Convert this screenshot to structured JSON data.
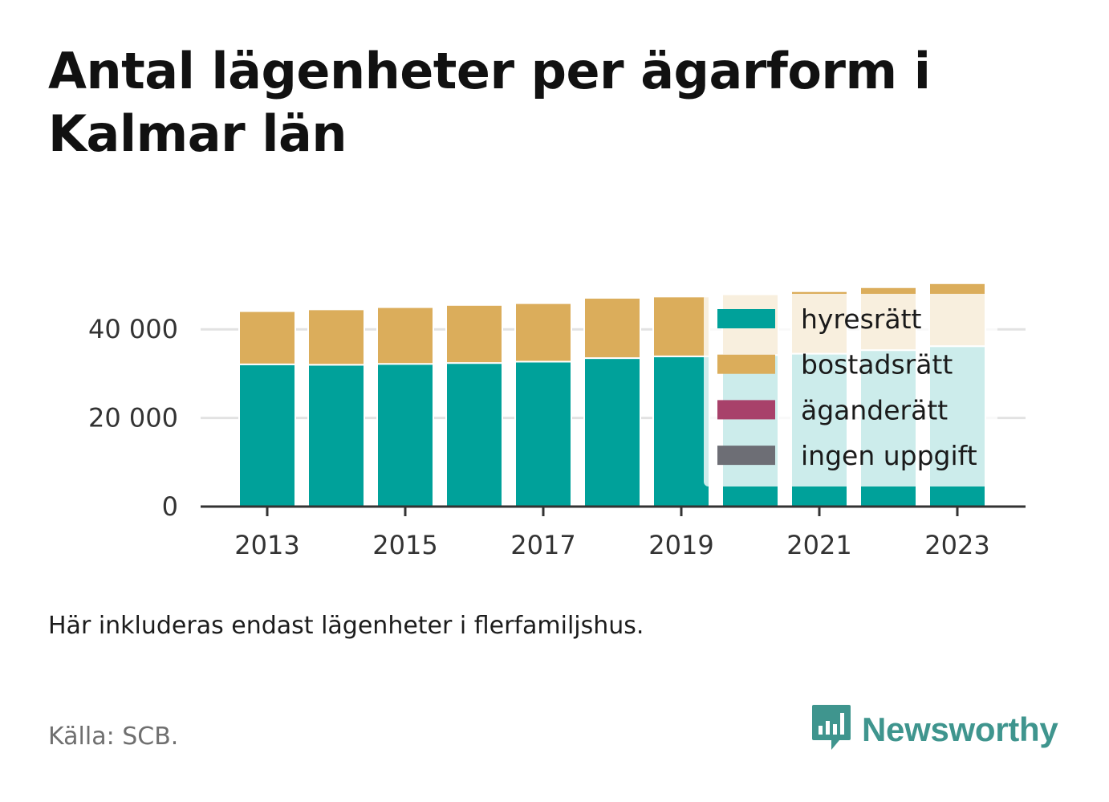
{
  "title": "Antal lägenheter per ägarform i Kalmar län",
  "note": "Här inkluderas endast lägenheter i flerfamiljshus.",
  "source": "Källa: SCB.",
  "brand": {
    "name": "Newsworthy",
    "icon": "newsworthy-bar-chart-logo-icon",
    "color": "#3f958e"
  },
  "chart_data": {
    "type": "bar",
    "stacked": true,
    "categories": [
      "2013",
      "2014",
      "2015",
      "2016",
      "2017",
      "2018",
      "2019",
      "2020",
      "2021",
      "2022",
      "2023"
    ],
    "x_tick_labels": [
      "2013",
      "2015",
      "2017",
      "2019",
      "2021",
      "2023"
    ],
    "series": [
      {
        "name": "hyresrätt",
        "color": "#00a19a",
        "values": [
          32100,
          32000,
          32200,
          32400,
          32700,
          33500,
          33900,
          34200,
          34500,
          35300,
          36200
        ]
      },
      {
        "name": "bostadsrätt",
        "color": "#dbad5b",
        "values": [
          12000,
          12500,
          12800,
          13100,
          13200,
          13600,
          13500,
          13700,
          14100,
          14200,
          14200
        ]
      },
      {
        "name": "äganderätt",
        "color": "#a8416a",
        "values": [
          0,
          0,
          0,
          0,
          0,
          0,
          0,
          0,
          0,
          0,
          0
        ]
      },
      {
        "name": "ingen uppgift",
        "color": "#6d6e75",
        "values": [
          0,
          0,
          0,
          0,
          0,
          0,
          0,
          0,
          0,
          0,
          0
        ]
      }
    ],
    "y_ticks": [
      "0",
      "20 000",
      "40 000"
    ],
    "y_tick_values": [
      0,
      20000,
      40000
    ],
    "ylim": [
      0,
      50000
    ],
    "grid": true,
    "legend_placement": "bottom-right, inside plot"
  }
}
